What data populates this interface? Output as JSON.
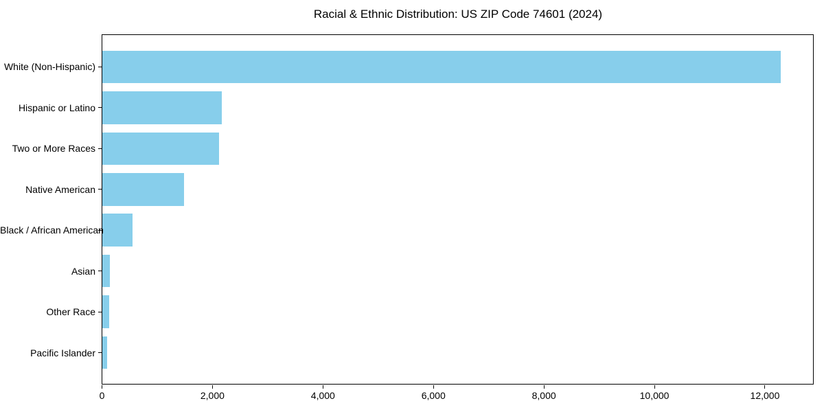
{
  "figure": {
    "background": "#ffffff",
    "text_color": "#000000",
    "spine_color": "#000000"
  },
  "chart_data": {
    "type": "bar",
    "orientation": "horizontal",
    "title": "Racial & Ethnic Distribution: US ZIP Code 74601 (2024)",
    "categories": [
      "White (Non-Hispanic)",
      "Hispanic or Latino",
      "Two or More Races",
      "Native American",
      "Black / African American",
      "Asian",
      "Other Race",
      "Pacific Islander"
    ],
    "values": [
      12283,
      2170,
      2120,
      1485,
      557,
      143,
      130,
      90
    ],
    "bar_color": "#87CEEB",
    "xlabel": "",
    "ylabel": "",
    "xlim": [
      0,
      12889
    ],
    "x_ticks": [
      0,
      2000,
      4000,
      6000,
      8000,
      10000,
      12000
    ],
    "x_tick_labels": [
      "0",
      "2,000",
      "4,000",
      "6,000",
      "8,000",
      "10,000",
      "12,000"
    ],
    "grid": false,
    "legend": false,
    "bar_height_fraction": 0.8
  }
}
